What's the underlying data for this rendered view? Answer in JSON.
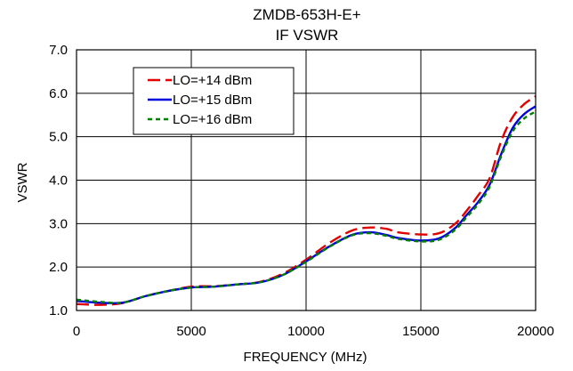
{
  "chart_data": {
    "type": "line",
    "title_lines": [
      "ZMDB-653H-E+",
      "IF VSWR"
    ],
    "xlabel": "FREQUENCY (MHz)",
    "ylabel": "VSWR",
    "xlim": [
      0,
      20000
    ],
    "ylim": [
      1.0,
      7.0
    ],
    "x_ticks": [
      0,
      5000,
      10000,
      15000,
      20000
    ],
    "x_tick_labels": [
      "0",
      "5000",
      "10000",
      "15000",
      "20000"
    ],
    "y_ticks": [
      1.0,
      2.0,
      3.0,
      4.0,
      5.0,
      6.0,
      7.0
    ],
    "y_tick_labels": [
      "1.0",
      "2.0",
      "3.0",
      "4.0",
      "5.0",
      "6.0",
      "7.0"
    ],
    "grid": "x and y",
    "legend_position": "top-left",
    "series": [
      {
        "name": "LO=+14 dBm",
        "color": "#e00000",
        "dash": "dashed",
        "x": [
          0,
          1000,
          2000,
          3000,
          4000,
          5000,
          6000,
          7000,
          8000,
          9000,
          10000,
          11000,
          12000,
          12800,
          13500,
          14000,
          15000,
          15800,
          16500,
          17000,
          17500,
          18000,
          18500,
          19000,
          19500,
          20000
        ],
        "y": [
          1.15,
          1.13,
          1.17,
          1.33,
          1.45,
          1.55,
          1.56,
          1.6,
          1.66,
          1.85,
          2.17,
          2.55,
          2.84,
          2.91,
          2.88,
          2.8,
          2.75,
          2.78,
          3.0,
          3.3,
          3.65,
          4.05,
          4.9,
          5.45,
          5.75,
          5.93
        ]
      },
      {
        "name": "LO=+15 dBm",
        "color": "#0000dd",
        "dash": "solid",
        "x": [
          0,
          1000,
          2000,
          3000,
          4000,
          5000,
          6000,
          7000,
          8000,
          9000,
          10000,
          11000,
          12000,
          12800,
          13500,
          14000,
          15000,
          15800,
          16500,
          17000,
          17500,
          18000,
          18500,
          19000,
          19500,
          20000
        ],
        "y": [
          1.22,
          1.18,
          1.18,
          1.33,
          1.45,
          1.53,
          1.55,
          1.6,
          1.65,
          1.82,
          2.13,
          2.47,
          2.74,
          2.8,
          2.74,
          2.67,
          2.61,
          2.66,
          2.9,
          3.2,
          3.5,
          3.9,
          4.6,
          5.2,
          5.52,
          5.7
        ]
      },
      {
        "name": "LO=+16 dBm",
        "color": "#008000",
        "dash": "dotted",
        "x": [
          0,
          1000,
          2000,
          3000,
          4000,
          5000,
          6000,
          7000,
          8000,
          9000,
          10000,
          11000,
          12000,
          12800,
          13500,
          14000,
          15000,
          15800,
          16500,
          17000,
          17500,
          18000,
          18500,
          19000,
          19500,
          20000
        ],
        "y": [
          1.25,
          1.2,
          1.18,
          1.33,
          1.45,
          1.53,
          1.55,
          1.6,
          1.65,
          1.82,
          2.12,
          2.46,
          2.73,
          2.78,
          2.72,
          2.65,
          2.59,
          2.63,
          2.86,
          3.15,
          3.45,
          3.85,
          4.55,
          5.12,
          5.42,
          5.58
        ]
      }
    ]
  }
}
